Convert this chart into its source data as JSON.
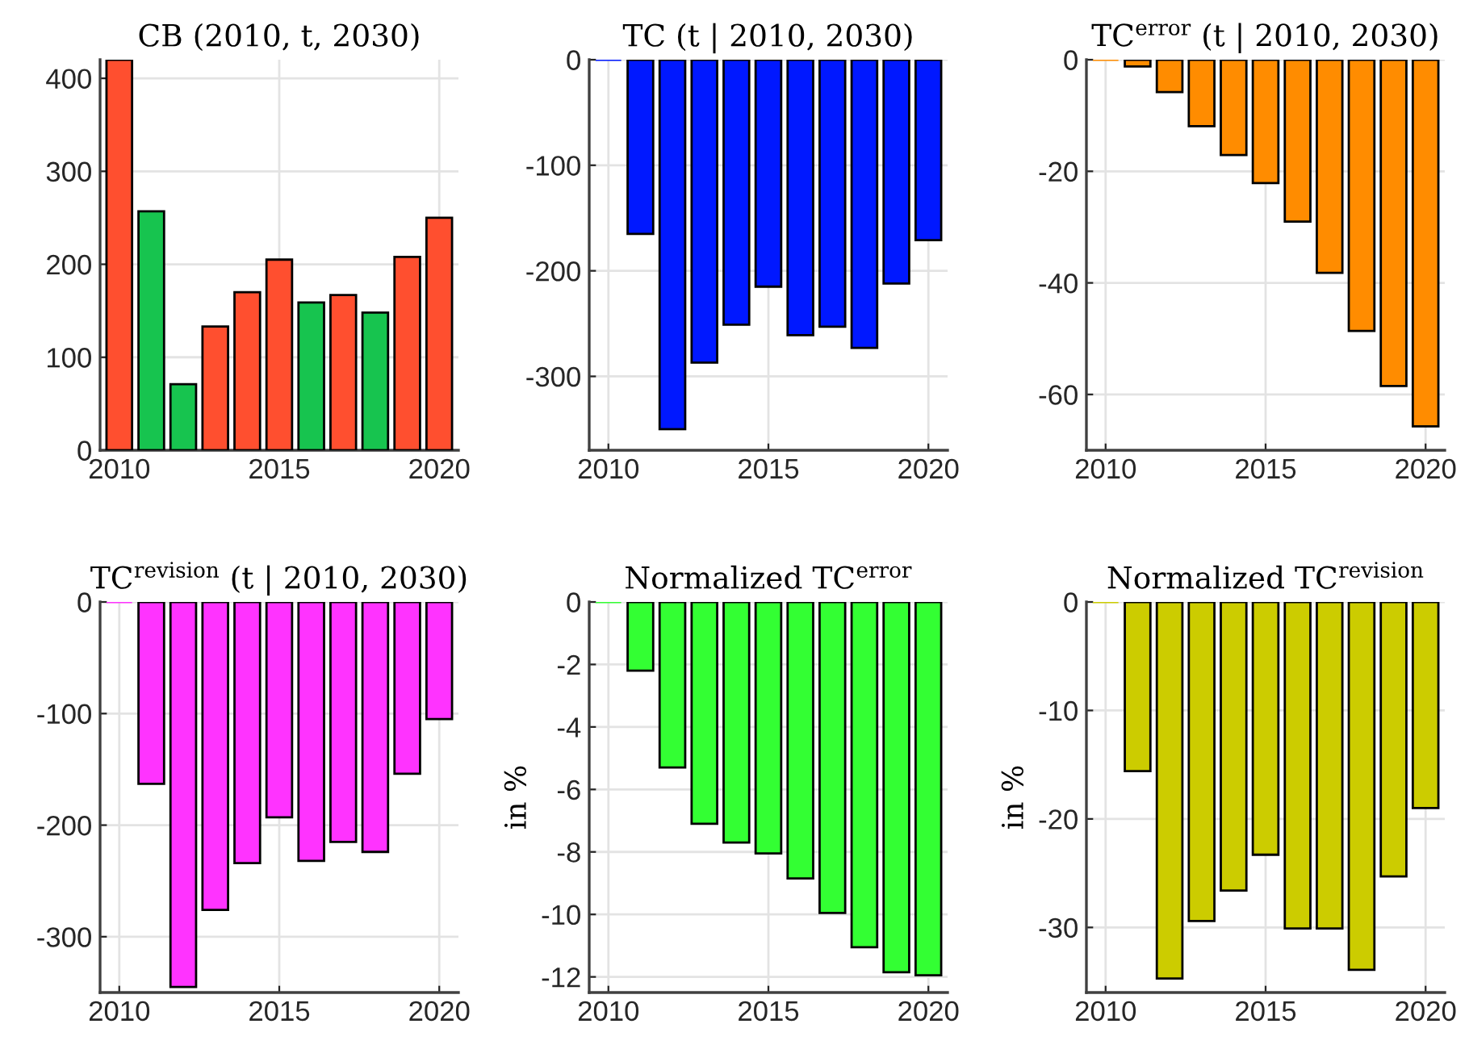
{
  "chart_data": [
    {
      "type": "bar",
      "title": "CB (2010, t, 2030)",
      "x": [
        2010,
        2011,
        2012,
        2013,
        2014,
        2015,
        2016,
        2017,
        2018,
        2019,
        2020
      ],
      "values": [
        420,
        257,
        71,
        133,
        170,
        205,
        159,
        167,
        148,
        208,
        250
      ],
      "colors": [
        "#ff4f2f",
        "#17c44f",
        "#17c44f",
        "#ff4f2f",
        "#ff4f2f",
        "#ff4f2f",
        "#17c44f",
        "#ff4f2f",
        "#17c44f",
        "#ff4f2f",
        "#ff4f2f"
      ],
      "xlim": [
        2009.4,
        2020.6
      ],
      "xticks": [
        2010,
        2015,
        2020
      ],
      "ylim": [
        0,
        420
      ],
      "yticks": [
        0,
        100,
        200,
        300,
        400
      ],
      "grid": true
    },
    {
      "type": "bar",
      "title": "TC (t | 2010, 2030)",
      "x": [
        2010,
        2011,
        2012,
        2013,
        2014,
        2015,
        2016,
        2017,
        2018,
        2019,
        2020
      ],
      "values": [
        0,
        -165,
        -350,
        -287,
        -251,
        -215,
        -261,
        -253,
        -273,
        -212,
        -171
      ],
      "color": "#0018ff",
      "xlim": [
        2009.4,
        2020.6
      ],
      "xticks": [
        2010,
        2015,
        2020
      ],
      "ylim": [
        -370,
        0
      ],
      "yticks": [
        -300,
        -200,
        -100,
        0
      ],
      "grid": true
    },
    {
      "type": "bar",
      "title": "TC$^{error}$ (t | 2010, 2030)",
      "x": [
        2010,
        2011,
        2012,
        2013,
        2014,
        2015,
        2016,
        2017,
        2018,
        2019,
        2020
      ],
      "values": [
        0,
        -1.2,
        -5.8,
        -11.9,
        -17.1,
        -22.1,
        -29,
        -38.2,
        -48.6,
        -58.5,
        -65.7
      ],
      "color": "#ff8c00",
      "xlim": [
        2009.4,
        2020.6
      ],
      "xticks": [
        2010,
        2015,
        2020
      ],
      "ylim": [
        -70,
        0
      ],
      "yticks": [
        -60,
        -40,
        -20,
        0
      ],
      "grid": true
    },
    {
      "type": "bar",
      "title": "TC$^{revision}$ (t | 2010, 2030)",
      "x": [
        2010,
        2011,
        2012,
        2013,
        2014,
        2015,
        2016,
        2017,
        2018,
        2019,
        2020
      ],
      "values": [
        0,
        -163,
        -345,
        -276,
        -234,
        -193,
        -232,
        -215,
        -224,
        -154,
        -105
      ],
      "color": "#ff33ff",
      "xlim": [
        2009.4,
        2020.6
      ],
      "xticks": [
        2010,
        2015,
        2020
      ],
      "ylim": [
        -350,
        0
      ],
      "yticks": [
        -300,
        -200,
        -100,
        0
      ],
      "grid": true
    },
    {
      "type": "bar",
      "title": "Normalized TC$^{error}$",
      "ylabel": "in %",
      "x": [
        2010,
        2011,
        2012,
        2013,
        2014,
        2015,
        2016,
        2017,
        2018,
        2019,
        2020
      ],
      "values": [
        0,
        -2.2,
        -5.3,
        -7.1,
        -7.7,
        -8.05,
        -8.85,
        -9.95,
        -11.05,
        -11.85,
        -11.95
      ],
      "color": "#33ff33",
      "xlim": [
        2009.4,
        2020.6
      ],
      "xticks": [
        2010,
        2015,
        2020
      ],
      "ylim": [
        -12.5,
        0
      ],
      "yticks": [
        -12,
        -10,
        -8,
        -6,
        -4,
        -2,
        0
      ],
      "grid": true
    },
    {
      "type": "bar",
      "title": "Normalized TC$^{revision}$",
      "ylabel": "in %",
      "x": [
        2010,
        2011,
        2012,
        2013,
        2014,
        2015,
        2016,
        2017,
        2018,
        2019,
        2020
      ],
      "values": [
        0,
        -15.6,
        -34.7,
        -29.4,
        -26.6,
        -23.3,
        -30.1,
        -30.1,
        -33.9,
        -25.3,
        -19
      ],
      "color": "#cccc00",
      "xlim": [
        2009.4,
        2020.6
      ],
      "xticks": [
        2010,
        2015,
        2020
      ],
      "ylim": [
        -36,
        0
      ],
      "yticks": [
        -30,
        -20,
        -10,
        0
      ],
      "grid": true
    }
  ]
}
